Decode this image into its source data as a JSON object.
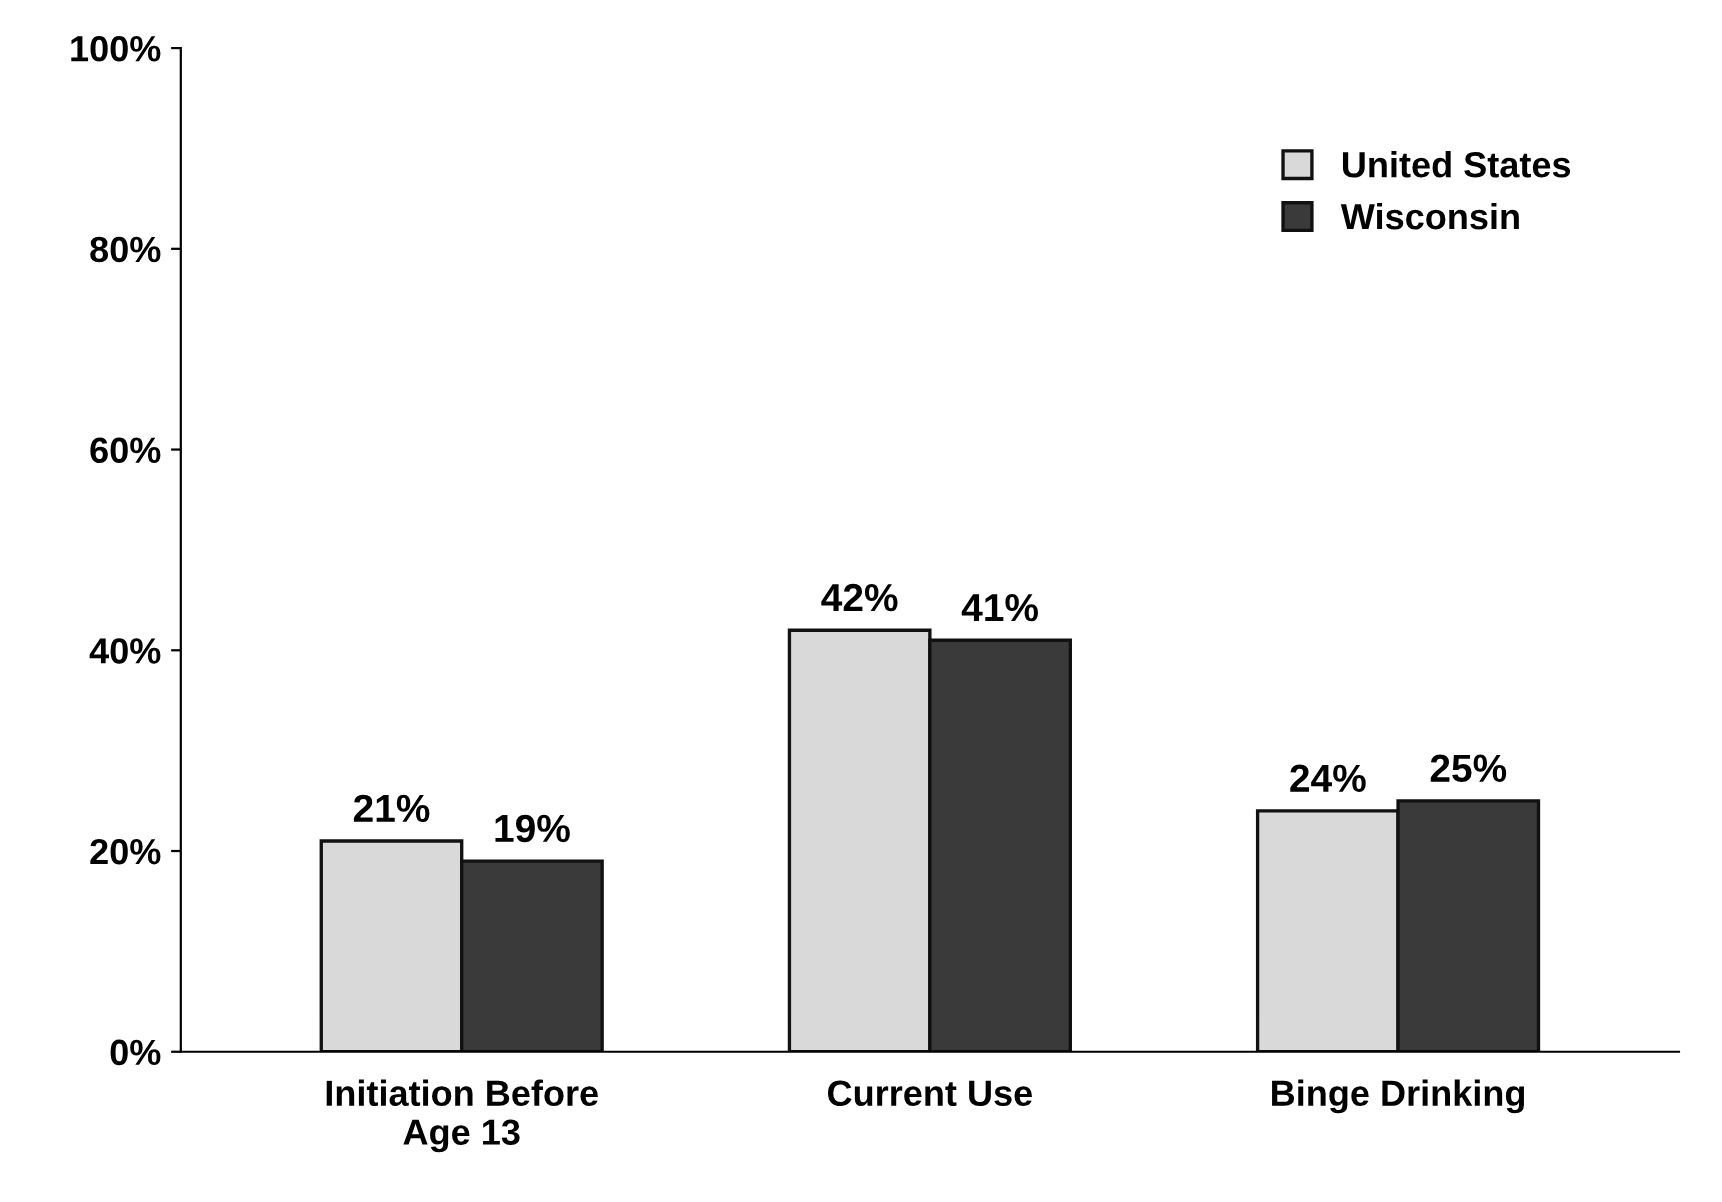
{
  "chart_data": {
    "type": "bar",
    "categories": [
      "Initiation Before\nAge 13",
      "Current Use",
      "Binge Drinking"
    ],
    "series": [
      {
        "name": "United States",
        "color": "#d9d9d9",
        "values": [
          21,
          42,
          24
        ],
        "value_labels": [
          "21%",
          "42%",
          "24%"
        ]
      },
      {
        "name": "Wisconsin",
        "color": "#3a3a3a",
        "values": [
          19,
          41,
          25
        ],
        "value_labels": [
          "19%",
          "41%",
          "25%"
        ]
      }
    ],
    "ylim": [
      0,
      100
    ],
    "yticks": [
      {
        "value": 0,
        "label": "0%"
      },
      {
        "value": 20,
        "label": "20%"
      },
      {
        "value": 40,
        "label": "40%"
      },
      {
        "value": 60,
        "label": "60%"
      },
      {
        "value": 80,
        "label": "80%"
      },
      {
        "value": 100,
        "label": "100%"
      }
    ],
    "grid": false,
    "legend": "top right"
  }
}
